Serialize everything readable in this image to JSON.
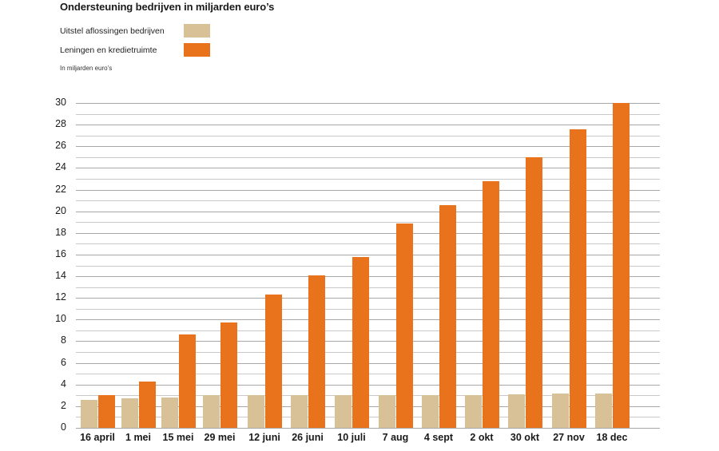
{
  "header": {
    "title": "Ondersteuning bedrijven in miljarden euro’s",
    "unit_note": "In miljarden euro’s"
  },
  "legend": [
    {
      "label": "Uitstel aflossingen bedrijven",
      "color": "#D8C196"
    },
    {
      "label": "Leningen en kredietruimte",
      "color": "#E8731C"
    }
  ],
  "colors": {
    "series_tan": "#D8C196",
    "series_orange": "#E8731C",
    "grid": "#C9C9C9",
    "text": "#1A1A1A"
  },
  "chart_data": {
    "type": "bar",
    "title": "Ondersteuning bedrijven in miljarden euro’s",
    "subtitle": "In miljarden euro’s",
    "xlabel": "",
    "ylabel": "In miljarden euro’s",
    "ylim": [
      0,
      30
    ],
    "yticks": [
      0,
      2,
      4,
      6,
      8,
      10,
      12,
      14,
      16,
      18,
      20,
      22,
      24,
      26,
      28,
      30
    ],
    "grid": true,
    "legend_position": "top-left",
    "categories": [
      "16 april",
      "1 mei",
      "15 mei",
      "29 mei",
      "12 juni",
      "26 juni",
      "10 juli",
      "7 aug",
      "4 sept",
      "2 okt",
      "30 okt",
      "27 nov",
      "18 dec"
    ],
    "series": [
      {
        "name": "Uitstel aflossingen bedrijven",
        "color": "#D8C196",
        "values": [
          2.6,
          2.7,
          2.8,
          3.0,
          3.0,
          3.0,
          3.0,
          3.0,
          3.0,
          3.0,
          3.1,
          3.2,
          3.2
        ]
      },
      {
        "name": "Leningen en kredietruimte",
        "color": "#E8731C",
        "values": [
          3.0,
          4.3,
          8.6,
          9.7,
          12.3,
          14.1,
          15.8,
          18.9,
          20.6,
          22.8,
          25.0,
          27.6,
          30.0
        ]
      }
    ]
  }
}
